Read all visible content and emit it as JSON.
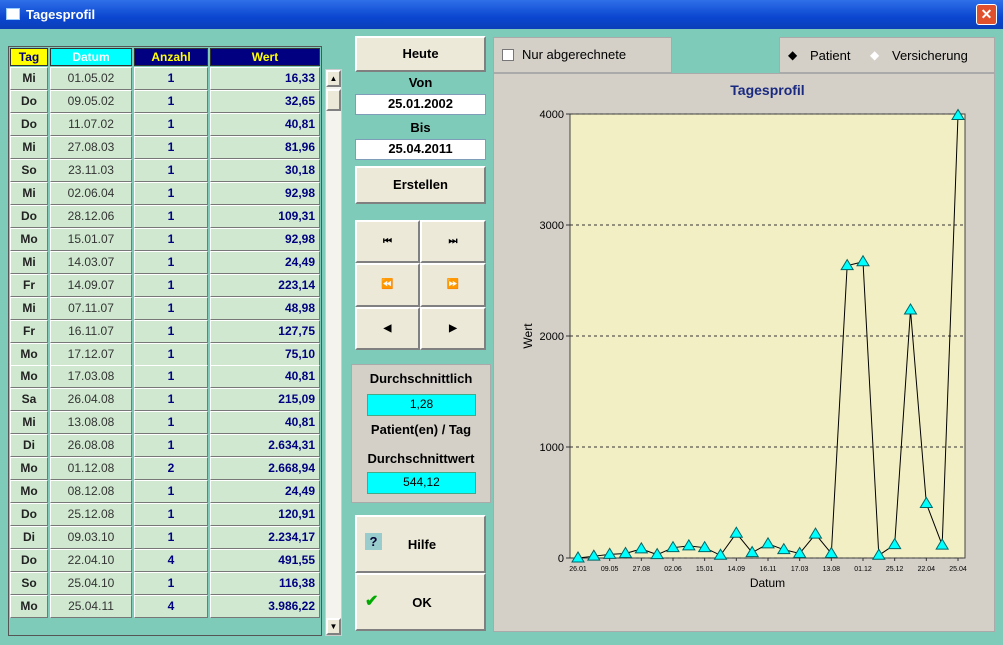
{
  "window": {
    "title": "Tagesprofil"
  },
  "table": {
    "columns": [
      "Tag",
      "Datum",
      "Anzahl",
      "Wert"
    ],
    "rows": [
      [
        "Mi",
        "01.05.02",
        "1",
        "16,33"
      ],
      [
        "Do",
        "09.05.02",
        "1",
        "32,65"
      ],
      [
        "Do",
        "11.07.02",
        "1",
        "40,81"
      ],
      [
        "Mi",
        "27.08.03",
        "1",
        "81,96"
      ],
      [
        "So",
        "23.11.03",
        "1",
        "30,18"
      ],
      [
        "Mi",
        "02.06.04",
        "1",
        "92,98"
      ],
      [
        "Do",
        "28.12.06",
        "1",
        "109,31"
      ],
      [
        "Mo",
        "15.01.07",
        "1",
        "92,98"
      ],
      [
        "Mi",
        "14.03.07",
        "1",
        "24,49"
      ],
      [
        "Fr",
        "14.09.07",
        "1",
        "223,14"
      ],
      [
        "Mi",
        "07.11.07",
        "1",
        "48,98"
      ],
      [
        "Fr",
        "16.11.07",
        "1",
        "127,75"
      ],
      [
        "Mo",
        "17.12.07",
        "1",
        "75,10"
      ],
      [
        "Mo",
        "17.03.08",
        "1",
        "40,81"
      ],
      [
        "Sa",
        "26.04.08",
        "1",
        "215,09"
      ],
      [
        "Mi",
        "13.08.08",
        "1",
        "40,81"
      ],
      [
        "Di",
        "26.08.08",
        "1",
        "2.634,31"
      ],
      [
        "Mo",
        "01.12.08",
        "2",
        "2.668,94"
      ],
      [
        "Mo",
        "08.12.08",
        "1",
        "24,49"
      ],
      [
        "Do",
        "25.12.08",
        "1",
        "120,91"
      ],
      [
        "Di",
        "09.03.10",
        "1",
        "2.234,17"
      ],
      [
        "Do",
        "22.04.10",
        "4",
        "491,55"
      ],
      [
        "So",
        "25.04.10",
        "1",
        "116,38"
      ],
      [
        "Mo",
        "25.04.11",
        "4",
        "3.986,22"
      ]
    ]
  },
  "controls": {
    "today": "Heute",
    "from_label": "Von",
    "from": "25.01.2002",
    "to_label": "Bis",
    "to": "25.04.2011",
    "create": "Erstellen",
    "average_label": "Durchschnittlich",
    "average_patients": "1,28",
    "per_day": "Patient(en) / Tag",
    "average_value_label": "Durchschnittwert",
    "average_value": "544,12",
    "help": "Hilfe",
    "ok": "OK",
    "only_billed": "Nur abgerechnete",
    "patient": "Patient",
    "insurance": "Versicherung"
  },
  "chart_data": {
    "type": "line",
    "title": "Tagesprofil",
    "x_label": "Datum",
    "y_label": "Wert",
    "categories": [
      "26.01",
      null,
      "09.05",
      null,
      "27.08",
      null,
      "02.06",
      null,
      "15.01",
      null,
      "14.09",
      null,
      "16.11",
      null,
      "17.03",
      null,
      "13.08",
      null,
      "01.12",
      null,
      "25.12",
      null,
      "22.04",
      null,
      "25.04"
    ],
    "series": [
      {
        "name": "Wert",
        "color": "#00ffff",
        "values": [
          0,
          16.33,
          32.65,
          40.81,
          81.96,
          30.18,
          92.98,
          109.31,
          92.98,
          24.49,
          223.14,
          48.98,
          127.75,
          75.1,
          40.81,
          215.09,
          40.81,
          2634.31,
          2668.94,
          24.49,
          120.91,
          2234.17,
          491.55,
          116.38,
          3986.22
        ]
      }
    ],
    "ylim": [
      0,
      4000
    ],
    "yticks": [
      0,
      1000,
      2000,
      3000,
      4000
    ],
    "grid": true
  }
}
